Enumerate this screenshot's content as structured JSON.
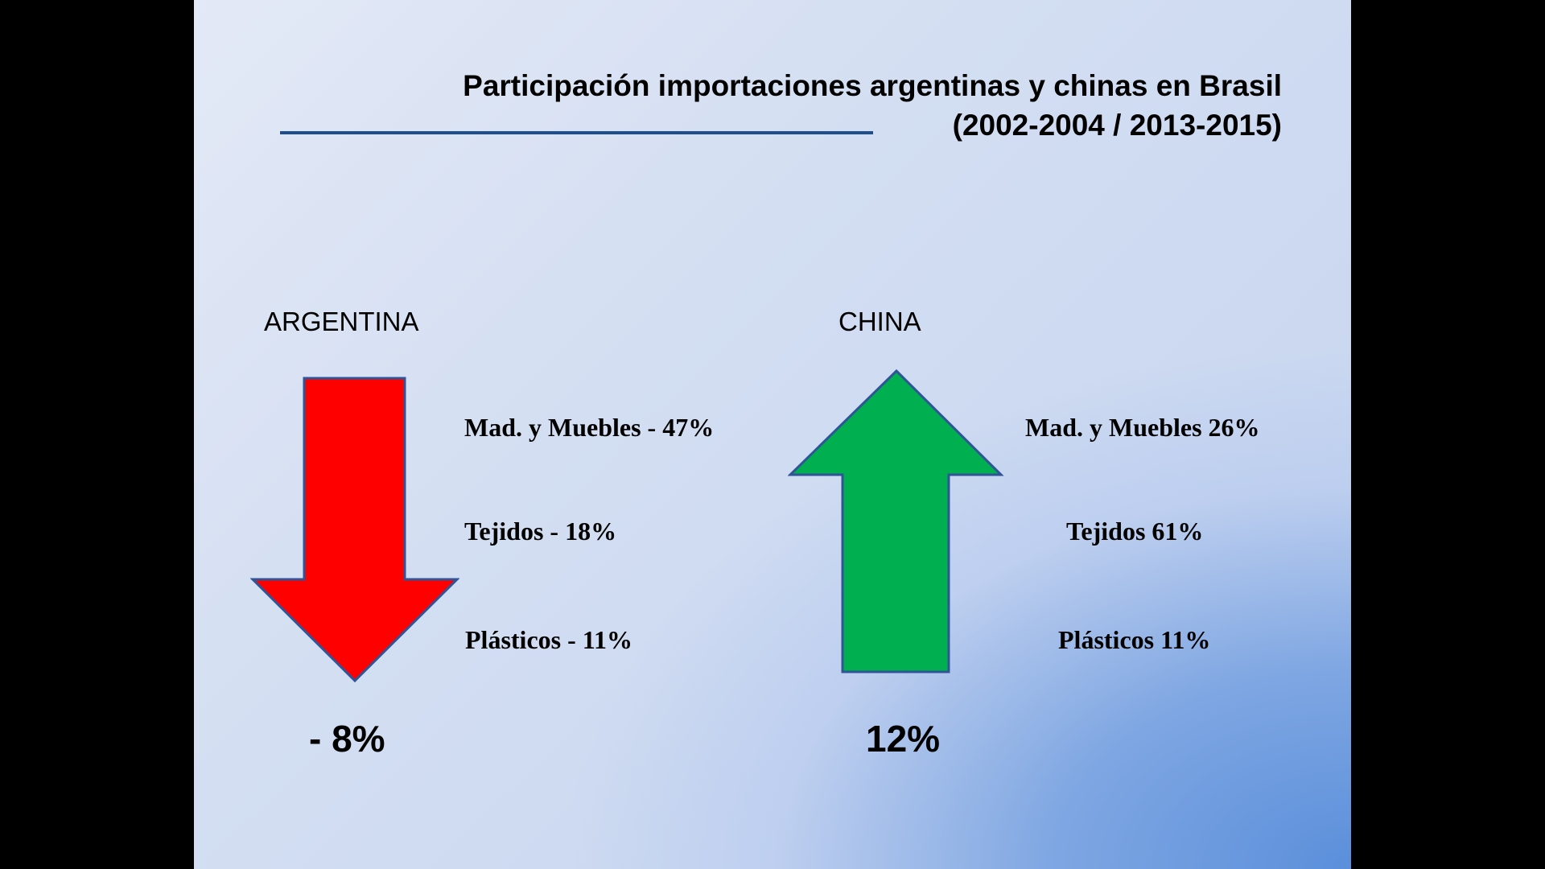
{
  "slide": {
    "title_line1": "Participación importaciones argentinas  y chinas  en Brasil",
    "title_line2": "(2002-2004 / 2013-2015)",
    "colors": {
      "rule": "#1f4e8c",
      "down_arrow": "#ff0000",
      "up_arrow": "#00b050",
      "arrow_outline": "#2f5597"
    }
  },
  "argentina": {
    "label": "ARGENTINA",
    "arrow": "arrow-down-icon",
    "items": [
      "Mad.  y Muebles - 47%",
      "Tejidos - 18%",
      "Plásticos - 11%"
    ],
    "total": "- 8%"
  },
  "china": {
    "label": "CHINA",
    "arrow": "arrow-up-icon",
    "items": [
      "Mad.  y Muebles  26%",
      "Tejidos 61%",
      "Plásticos  11%"
    ],
    "total": "12%"
  }
}
